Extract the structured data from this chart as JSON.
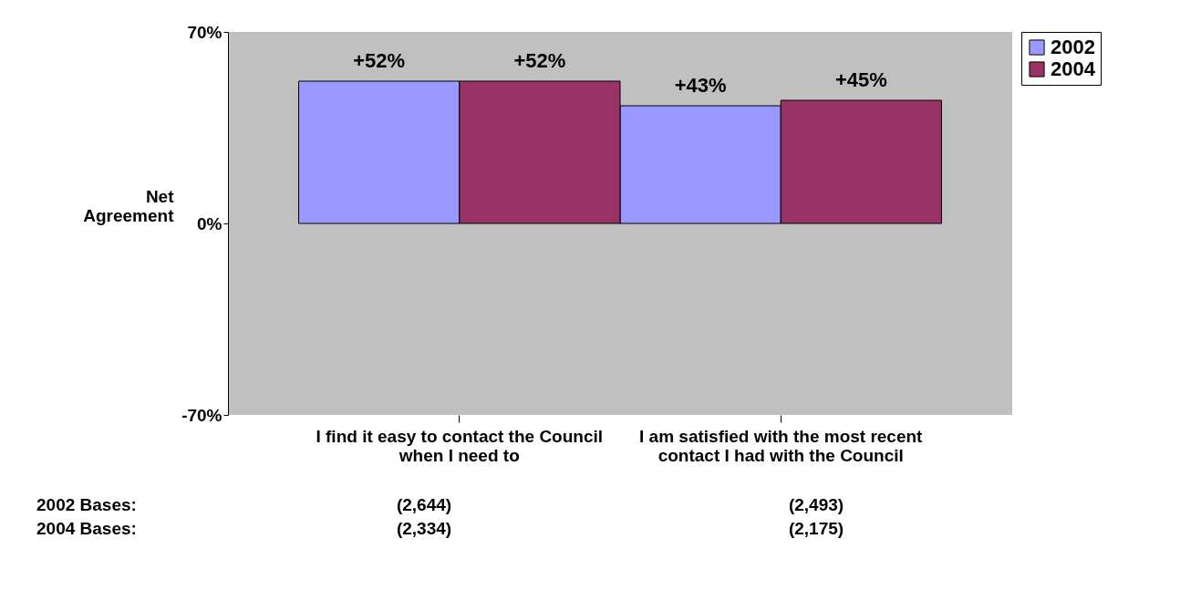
{
  "chart_data": {
    "type": "bar",
    "ylabel": "Net Agreement",
    "categories": [
      "I find it easy to contact the Council when I need to",
      "I am satisfied with the most recent contact I had with the Council"
    ],
    "series": [
      {
        "name": "2002",
        "color": "#9999ff",
        "values": [
          52,
          43
        ],
        "value_labels": [
          "+52%",
          "+43%"
        ]
      },
      {
        "name": "2004",
        "color": "#993366",
        "values": [
          52,
          45
        ],
        "value_labels": [
          "+52%",
          "+45%"
        ]
      }
    ],
    "ylim": [
      -70,
      70
    ],
    "yticks": [
      {
        "value": -70,
        "label": "-70%"
      },
      {
        "value": 0,
        "label": "0%"
      },
      {
        "value": 70,
        "label": "70%"
      }
    ],
    "grid": false,
    "legend": "top right",
    "annotations": [
      "2002 Bases:",
      "(2,644)",
      "(2,493)",
      "2004 Bases:",
      "(2,334)",
      "(2,175)"
    ]
  }
}
